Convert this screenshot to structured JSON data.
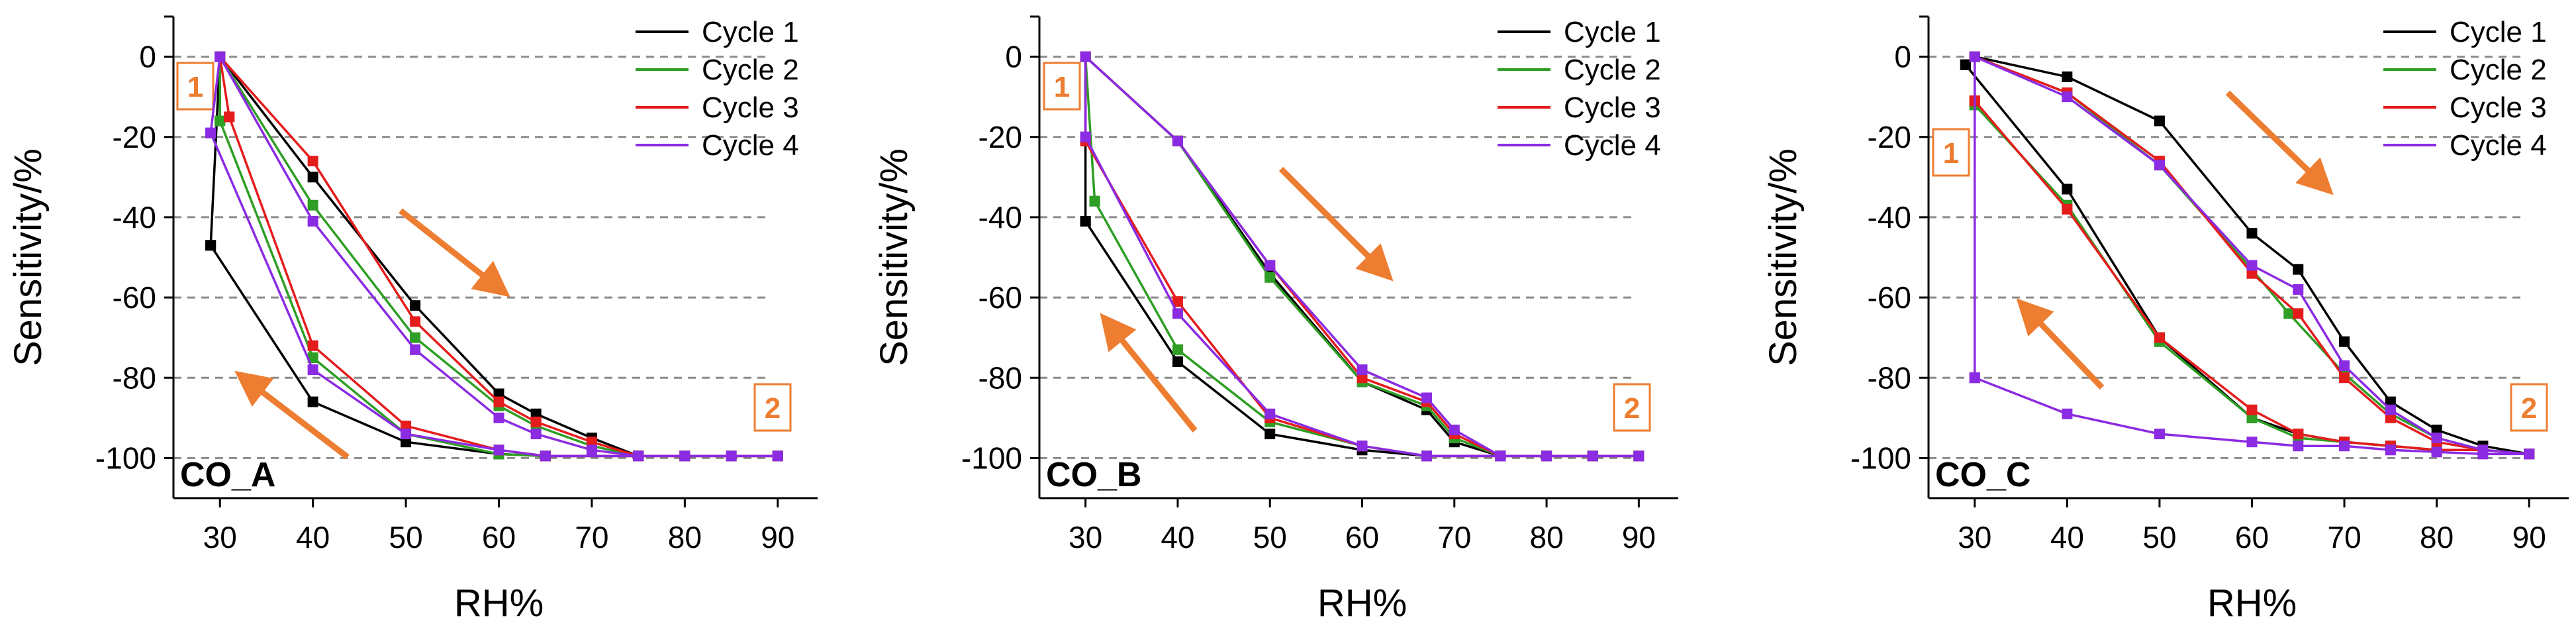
{
  "colors": {
    "Cycle 1": "#000000",
    "Cycle 2": "#2E9E24",
    "Cycle 3": "#E51C1C",
    "Cycle 4": "#8B2BE2",
    "arrow": "#ED7D31",
    "grid": "#8c8c8c"
  },
  "chart_data": [
    {
      "type": "line",
      "title": "CO_A",
      "xlabel": "RH%",
      "ylabel": "Sensitivity/%",
      "xlim": [
        25,
        95
      ],
      "ylim": [
        -110,
        10
      ],
      "xticks": [
        30,
        40,
        50,
        60,
        70,
        80,
        90
      ],
      "yticks": [
        0,
        -20,
        -40,
        -60,
        -80,
        -100
      ],
      "grid": "horizontal dashed at y ticks",
      "legend": [
        "Cycle 1",
        "Cycle 2",
        "Cycle 3",
        "Cycle 4"
      ],
      "legend_position": "top-right",
      "annotations": [
        {
          "label": "1",
          "position": "top-left"
        },
        {
          "label": "2",
          "position": "bottom-right"
        }
      ],
      "series": [
        {
          "name": "Cycle 1",
          "x": [
            29,
            30,
            40,
            51,
            60,
            64,
            70,
            75,
            80,
            85,
            90,
            75,
            65,
            60,
            50,
            40,
            29
          ],
          "y": [
            -47,
            0,
            -30,
            -62,
            -84,
            -89,
            -95,
            -99.5,
            -99.5,
            -99.5,
            -99.5,
            -99.5,
            -99.5,
            -99,
            -96,
            -86,
            -47
          ]
        },
        {
          "name": "Cycle 2",
          "x": [
            30,
            30,
            40,
            51,
            60,
            64,
            70,
            75,
            80,
            85,
            90,
            75,
            65,
            60,
            50,
            40,
            30
          ],
          "y": [
            -16,
            0,
            -37,
            -70,
            -87,
            -92,
            -97,
            -99.5,
            -99.5,
            -99.5,
            -99.5,
            -99.5,
            -99.5,
            -99,
            -94,
            -75,
            -16
          ]
        },
        {
          "name": "Cycle 3",
          "x": [
            31,
            30,
            40,
            51,
            60,
            64,
            70,
            75,
            80,
            85,
            90,
            75,
            65,
            60,
            50,
            40,
            31
          ],
          "y": [
            -15,
            0,
            -26,
            -66,
            -86,
            -91,
            -96,
            -99.5,
            -99.5,
            -99.5,
            -99.5,
            -99.5,
            -99.5,
            -98,
            -92,
            -72,
            -15
          ]
        },
        {
          "name": "Cycle 4",
          "x": [
            29,
            30,
            40,
            51,
            60,
            64,
            70,
            75,
            80,
            85,
            90,
            75,
            65,
            60,
            50,
            40,
            29
          ],
          "y": [
            -19,
            0,
            -41,
            -73,
            -90,
            -94,
            -98,
            -99.5,
            -99.5,
            -99.5,
            -99.5,
            -99.5,
            -99.5,
            -98,
            -94,
            -78,
            -19
          ]
        }
      ]
    },
    {
      "type": "line",
      "title": "CO_B",
      "xlabel": "RH%",
      "ylabel": "Sensitivity/%",
      "xlim": [
        25,
        95
      ],
      "ylim": [
        -110,
        10
      ],
      "xticks": [
        30,
        40,
        50,
        60,
        70,
        80,
        90
      ],
      "yticks": [
        0,
        -20,
        -40,
        -60,
        -80,
        -100
      ],
      "grid": "horizontal dashed at y ticks",
      "legend": [
        "Cycle 1",
        "Cycle 2",
        "Cycle 3",
        "Cycle 4"
      ],
      "legend_position": "top-right",
      "annotations": [
        {
          "label": "1",
          "position": "top-left"
        },
        {
          "label": "2",
          "position": "bottom-right"
        }
      ],
      "series": [
        {
          "name": "Cycle 1",
          "x": [
            30,
            30,
            40,
            50,
            60,
            67,
            70,
            75,
            80,
            85,
            90,
            75,
            67,
            60,
            50,
            40,
            30
          ],
          "y": [
            -41,
            0,
            -21,
            -54,
            -81,
            -88,
            -96,
            -99.5,
            -99.5,
            -99.5,
            -99.5,
            -99.5,
            -99.5,
            -98,
            -94,
            -76,
            -41
          ]
        },
        {
          "name": "Cycle 2",
          "x": [
            31,
            30,
            40,
            50,
            60,
            67,
            70,
            75,
            80,
            85,
            90,
            75,
            67,
            60,
            50,
            40,
            31
          ],
          "y": [
            -36,
            0,
            -21,
            -55,
            -81,
            -87,
            -95,
            -99.5,
            -99.5,
            -99.5,
            -99.5,
            -99.5,
            -99.5,
            -97,
            -91,
            -73,
            -36
          ]
        },
        {
          "name": "Cycle 3",
          "x": [
            30,
            30,
            40,
            50,
            60,
            67,
            70,
            75,
            80,
            85,
            90,
            75,
            67,
            60,
            50,
            40,
            30
          ],
          "y": [
            -21,
            0,
            -21,
            -52,
            -80,
            -86,
            -94,
            -99.5,
            -99.5,
            -99.5,
            -99.5,
            -99.5,
            -99.5,
            -97,
            -90,
            -61,
            -21
          ]
        },
        {
          "name": "Cycle 4",
          "x": [
            30,
            30,
            40,
            50,
            60,
            67,
            70,
            75,
            80,
            85,
            90,
            75,
            67,
            60,
            50,
            40,
            30
          ],
          "y": [
            -20,
            0,
            -21,
            -52,
            -78,
            -85,
            -93,
            -99.5,
            -99.5,
            -99.5,
            -99.5,
            -99.5,
            -99.5,
            -97,
            -89,
            -64,
            -20
          ]
        }
      ]
    },
    {
      "type": "line",
      "title": "CO_C",
      "xlabel": "RH%",
      "ylabel": "Sensitivity/%",
      "xlim": [
        25,
        95
      ],
      "ylim": [
        -110,
        10
      ],
      "xticks": [
        30,
        40,
        50,
        60,
        70,
        80,
        90
      ],
      "yticks": [
        0,
        -20,
        -40,
        -60,
        -80,
        -100
      ],
      "grid": "horizontal dashed at y ticks",
      "legend": [
        "Cycle 1",
        "Cycle 2",
        "Cycle 3",
        "Cycle 4"
      ],
      "legend_position": "top-right",
      "annotations": [
        {
          "label": "1",
          "position": "top-left"
        },
        {
          "label": "2",
          "position": "bottom-right"
        }
      ],
      "series": [
        {
          "name": "Cycle 1",
          "x": [
            29,
            30,
            40,
            50,
            60,
            65,
            70,
            75,
            80,
            85,
            90,
            85,
            80,
            75,
            70,
            65,
            60,
            50,
            40,
            29
          ],
          "y": [
            -2,
            0,
            -5,
            -16,
            -44,
            -53,
            -71,
            -86,
            -93,
            -97,
            -99,
            -98,
            -98,
            -97,
            -96,
            -94,
            -90,
            -70,
            -33,
            -2
          ]
        },
        {
          "name": "Cycle 2",
          "x": [
            30,
            30,
            40,
            50,
            60,
            64,
            70,
            75,
            80,
            85,
            90,
            85,
            80,
            75,
            70,
            65,
            60,
            50,
            40,
            30
          ],
          "y": [
            -12,
            0,
            -9,
            -27,
            -53,
            -64,
            -79,
            -89,
            -95,
            -98,
            -99,
            -98,
            -98,
            -97,
            -96,
            -95,
            -90,
            -71,
            -37,
            -12
          ]
        },
        {
          "name": "Cycle 3",
          "x": [
            30,
            30,
            40,
            50,
            60,
            65,
            70,
            75,
            80,
            85,
            90,
            85,
            80,
            75,
            70,
            65,
            60,
            50,
            40,
            30
          ],
          "y": [
            -11,
            0,
            -9,
            -26,
            -54,
            -64,
            -80,
            -90,
            -96,
            -98,
            -99,
            -98,
            -98,
            -97,
            -96,
            -94,
            -88,
            -70,
            -38,
            -11
          ]
        },
        {
          "name": "Cycle 4",
          "x": [
            30,
            30,
            40,
            50,
            60,
            65,
            70,
            75,
            80,
            85,
            90,
            85,
            80,
            75,
            70,
            65,
            60,
            50,
            40,
            30
          ],
          "y": [
            -80,
            0,
            -10,
            -27,
            -52,
            -58,
            -77,
            -88,
            -95,
            -98,
            -99,
            -99,
            -98.5,
            -98,
            -97,
            -97,
            -96,
            -94,
            -89,
            -80
          ]
        }
      ]
    }
  ]
}
